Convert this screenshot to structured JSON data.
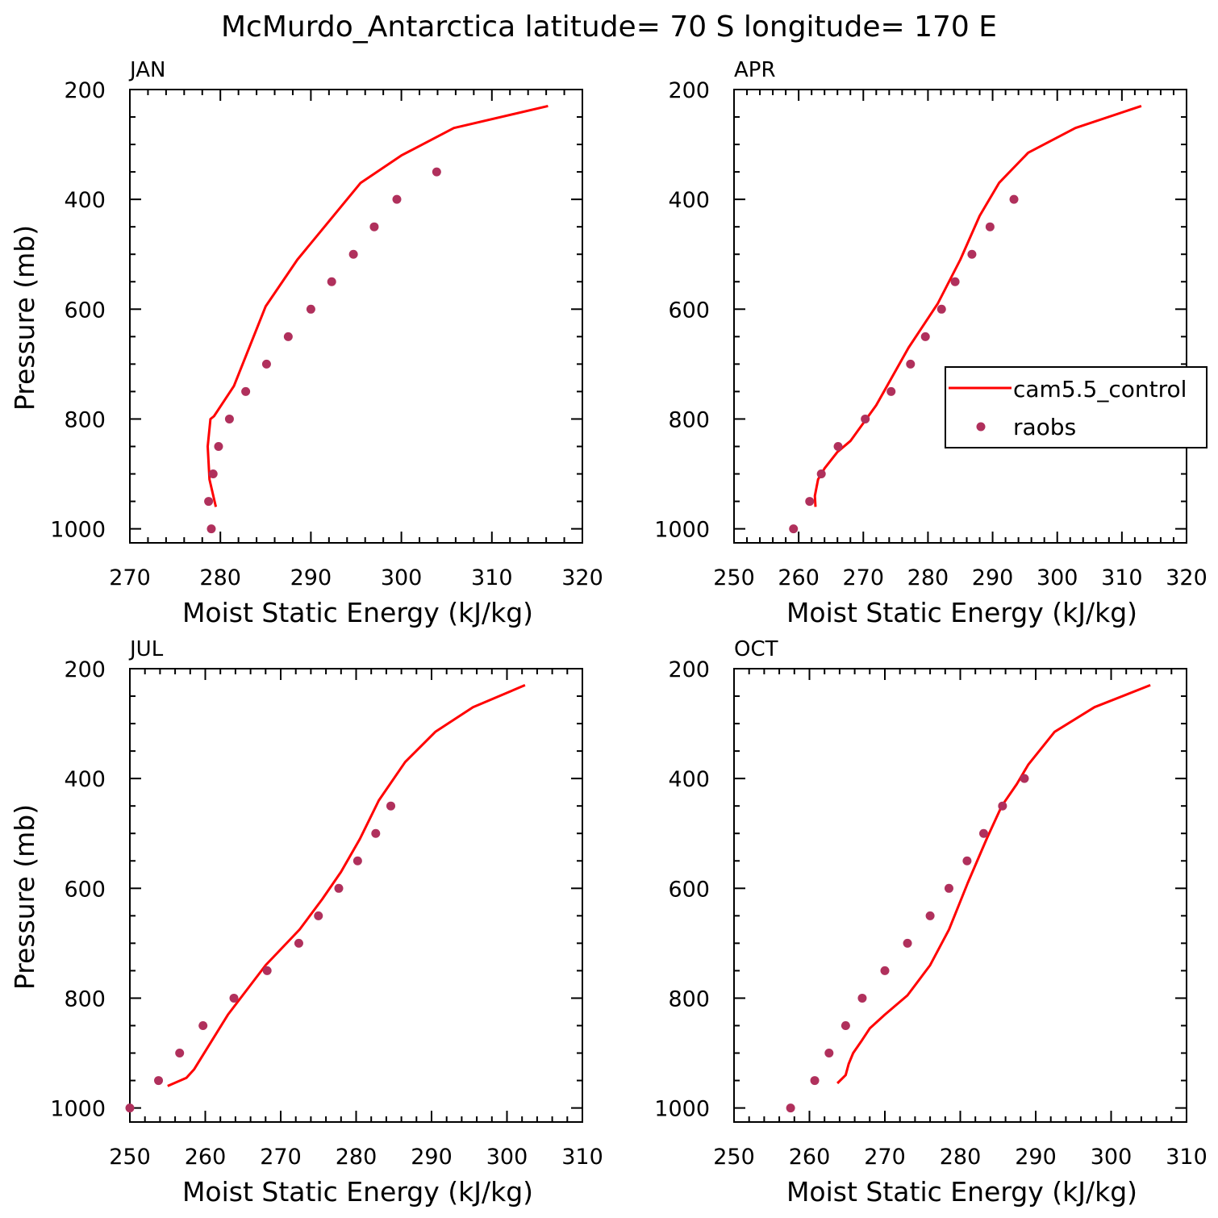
{
  "title": "McMurdo_Antarctica  latitude= 70 S longitude= 170 E",
  "legend": {
    "line_label": "cam5.5_control",
    "dots_label": "raobs",
    "placement": "panel APR, right",
    "line_color": "#ff0000",
    "dot_color": "#b0305c"
  },
  "chart_data": [
    {
      "type": "line+scatter",
      "panel_label": "JAN",
      "xlabel": "Moist Static Energy (kJ/kg)",
      "ylabel": "Pressure (mb)",
      "xlim": [
        270,
        320
      ],
      "ylim": [
        1000,
        200
      ],
      "xticks": [
        270,
        280,
        290,
        300,
        310,
        320
      ],
      "yticks": [
        200,
        400,
        600,
        800,
        1000
      ],
      "series": [
        {
          "name": "cam5.5_control",
          "kind": "line",
          "x": [
            279.5,
            278.8,
            278.6,
            278.9,
            279.3,
            281.5,
            285.0,
            288.5,
            292.0,
            295.5,
            300.0,
            305.8,
            316.2
          ],
          "y": [
            960,
            910,
            850,
            800,
            795,
            740,
            595,
            510,
            440,
            370,
            320,
            270,
            230
          ]
        },
        {
          "name": "raobs",
          "kind": "scatter",
          "x": [
            279.0,
            278.7,
            279.2,
            279.8,
            281.0,
            282.8,
            285.1,
            287.5,
            290.0,
            292.3,
            294.7,
            297.0,
            299.5,
            303.9
          ],
          "y": [
            1000,
            950,
            900,
            850,
            800,
            750,
            700,
            650,
            600,
            550,
            500,
            450,
            400,
            350
          ]
        }
      ]
    },
    {
      "type": "line+scatter",
      "panel_label": "APR",
      "xlabel": "Moist Static Energy (kJ/kg)",
      "ylabel": "",
      "xlim": [
        250,
        320
      ],
      "ylim": [
        1000,
        200
      ],
      "xticks": [
        250,
        260,
        270,
        280,
        290,
        300,
        310,
        320
      ],
      "yticks": [
        200,
        400,
        600,
        800,
        1000
      ],
      "series": [
        {
          "name": "cam5.5_control",
          "kind": "line",
          "x": [
            262.6,
            262.5,
            263.0,
            264.0,
            266.0,
            268.0,
            272.0,
            277.0,
            281.5,
            285.0,
            288.0,
            291.0,
            295.5,
            302.8,
            313.0
          ],
          "y": [
            960,
            940,
            910,
            890,
            860,
            840,
            775,
            670,
            590,
            510,
            430,
            370,
            315,
            270,
            230
          ]
        },
        {
          "name": "raobs",
          "kind": "scatter",
          "x": [
            259.2,
            261.7,
            263.5,
            266.1,
            270.3,
            274.3,
            277.3,
            279.6,
            282.1,
            284.2,
            286.8,
            289.6,
            293.3
          ],
          "y": [
            1000,
            950,
            900,
            850,
            800,
            750,
            700,
            650,
            600,
            550,
            500,
            450,
            400
          ]
        }
      ]
    },
    {
      "type": "line+scatter",
      "panel_label": "JUL",
      "xlabel": "Moist Static Energy (kJ/kg)",
      "ylabel": "Pressure (mb)",
      "xlim": [
        250,
        310
      ],
      "ylim": [
        1000,
        200
      ],
      "xticks": [
        250,
        260,
        270,
        280,
        290,
        300,
        310
      ],
      "yticks": [
        200,
        400,
        600,
        800,
        1000
      ],
      "series": [
        {
          "name": "cam5.5_control",
          "kind": "line",
          "x": [
            255.0,
            257.5,
            258.5,
            263.0,
            268.0,
            272.5,
            275.5,
            278.0,
            280.5,
            283.0,
            286.5,
            290.5,
            295.5,
            302.4
          ],
          "y": [
            960,
            945,
            930,
            830,
            740,
            675,
            620,
            570,
            510,
            440,
            370,
            315,
            270,
            230
          ]
        },
        {
          "name": "raobs",
          "kind": "scatter",
          "x": [
            250.0,
            253.8,
            256.6,
            259.7,
            263.8,
            268.2,
            272.4,
            275.0,
            277.7,
            280.2,
            282.6,
            284.6
          ],
          "y": [
            1000,
            950,
            900,
            850,
            800,
            750,
            700,
            650,
            600,
            550,
            500,
            450
          ]
        }
      ]
    },
    {
      "type": "line+scatter",
      "panel_label": "OCT",
      "xlabel": "Moist Static Energy (kJ/kg)",
      "ylabel": "",
      "xlim": [
        250,
        310
      ],
      "ylim": [
        1000,
        200
      ],
      "xticks": [
        250,
        260,
        270,
        280,
        290,
        300,
        310
      ],
      "yticks": [
        200,
        400,
        600,
        800,
        1000
      ],
      "series": [
        {
          "name": "cam5.5_control",
          "kind": "line",
          "x": [
            263.7,
            264.8,
            265.2,
            265.8,
            266.8,
            268.0,
            270.0,
            273.0,
            276.0,
            278.5,
            281.0,
            283.5,
            285.5,
            287.5,
            289.0,
            292.5,
            297.8,
            305.2
          ],
          "y": [
            955,
            940,
            920,
            900,
            880,
            855,
            830,
            795,
            740,
            675,
            590,
            510,
            450,
            410,
            375,
            315,
            270,
            230
          ]
        },
        {
          "name": "raobs",
          "kind": "scatter",
          "x": [
            257.5,
            260.7,
            262.6,
            264.8,
            267.0,
            270.0,
            273.0,
            276.0,
            278.5,
            280.9,
            283.1,
            285.6,
            288.5
          ],
          "y": [
            1000,
            950,
            900,
            850,
            800,
            750,
            700,
            650,
            600,
            550,
            500,
            450,
            400
          ]
        }
      ]
    }
  ]
}
